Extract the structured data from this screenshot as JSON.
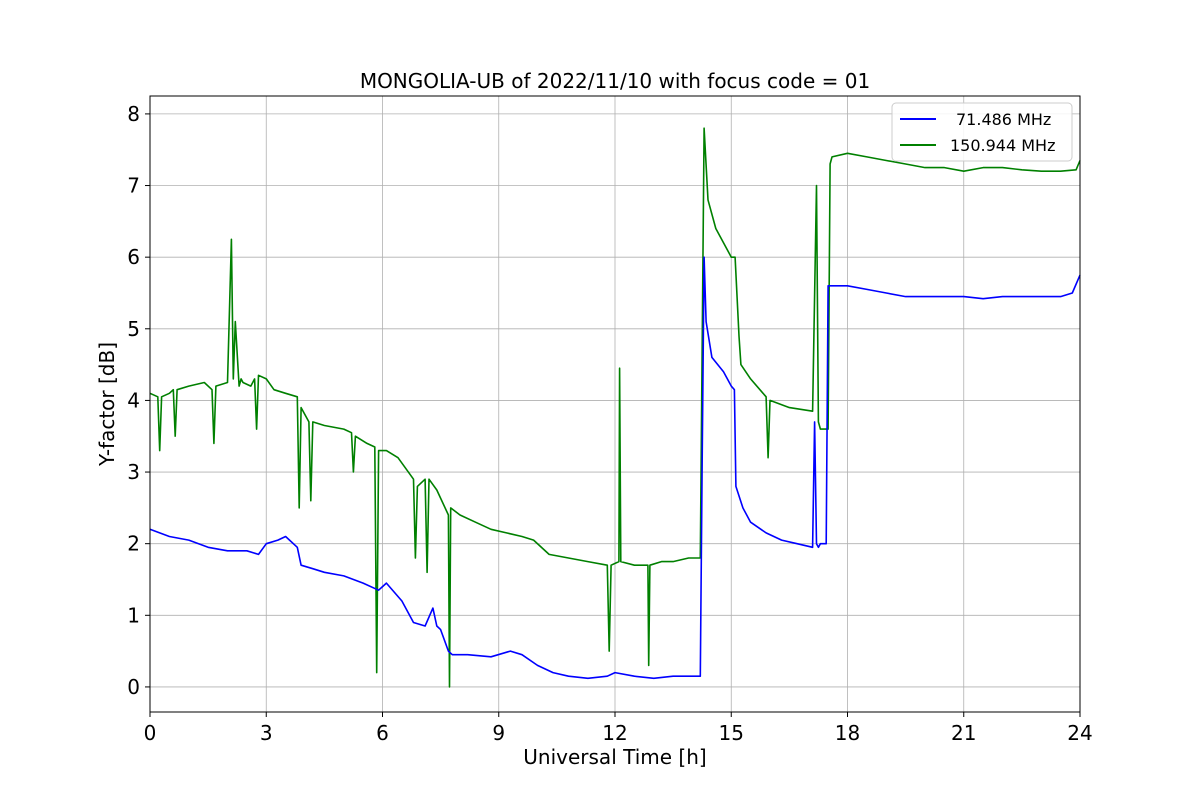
{
  "chart_data": {
    "type": "line",
    "title": "MONGOLIA-UB of 2022/11/10 with focus code = 01",
    "xlabel": "Universal Time [h]",
    "ylabel": "Y-factor [dB]",
    "xlim": [
      0,
      24
    ],
    "ylim": [
      -0.35,
      8.25
    ],
    "xticks": [
      0,
      3,
      6,
      9,
      12,
      15,
      18,
      21,
      24
    ],
    "xtick_labels": [
      "0",
      "3",
      "6",
      "9",
      "12",
      "15",
      "18",
      "21",
      "24"
    ],
    "yticks": [
      0,
      1,
      2,
      3,
      4,
      5,
      6,
      7,
      8
    ],
    "ytick_labels": [
      "0",
      "1",
      "2",
      "3",
      "4",
      "5",
      "6",
      "7",
      "8"
    ],
    "grid": true,
    "legend_position": "top-right",
    "series": [
      {
        "name": "71.486 MHz",
        "color": "#0000ff",
        "x": [
          0,
          0.5,
          1,
          1.5,
          2,
          2.5,
          2.8,
          3,
          3.3,
          3.5,
          3.8,
          3.9,
          4.2,
          4.5,
          5,
          5.5,
          5.9,
          6.1,
          6.5,
          6.8,
          7.1,
          7.3,
          7.4,
          7.5,
          7.7,
          7.8,
          8.2,
          8.8,
          9.3,
          9.6,
          10,
          10.4,
          10.8,
          11.3,
          11.8,
          12,
          12.5,
          13,
          13.5,
          14,
          14.2,
          14.25,
          14.3,
          14.35,
          14.5,
          14.8,
          15,
          15.08,
          15.12,
          15.3,
          15.5,
          15.9,
          16.3,
          16.7,
          17.1,
          17.15,
          17.2,
          17.25,
          17.3,
          17.45,
          17.5,
          17.7,
          18,
          18.5,
          19,
          19.5,
          20,
          20.5,
          21,
          21.5,
          22,
          22.5,
          23,
          23.5,
          23.8,
          24
        ],
        "y": [
          2.2,
          2.1,
          2.05,
          1.95,
          1.9,
          1.9,
          1.85,
          2.0,
          2.05,
          2.1,
          1.95,
          1.7,
          1.65,
          1.6,
          1.55,
          1.45,
          1.35,
          1.45,
          1.2,
          0.9,
          0.85,
          1.1,
          0.85,
          0.8,
          0.5,
          0.45,
          0.45,
          0.42,
          0.5,
          0.45,
          0.3,
          0.2,
          0.15,
          0.12,
          0.15,
          0.2,
          0.15,
          0.12,
          0.15,
          0.15,
          0.15,
          3.2,
          6.0,
          5.1,
          4.6,
          4.4,
          4.2,
          4.15,
          2.8,
          2.5,
          2.3,
          2.15,
          2.05,
          2.0,
          1.95,
          3.7,
          2.0,
          1.95,
          2.0,
          2.0,
          5.6,
          5.6,
          5.6,
          5.55,
          5.5,
          5.45,
          5.45,
          5.45,
          5.45,
          5.42,
          5.45,
          5.45,
          5.45,
          5.45,
          5.5,
          5.75
        ]
      },
      {
        "name": "150.944 MHz",
        "color": "#008000",
        "x": [
          0,
          0.2,
          0.25,
          0.3,
          0.5,
          0.6,
          0.65,
          0.7,
          1,
          1.4,
          1.6,
          1.65,
          1.7,
          2,
          2.1,
          2.15,
          2.2,
          2.3,
          2.35,
          2.4,
          2.6,
          2.7,
          2.75,
          2.8,
          3,
          3.2,
          3.5,
          3.8,
          3.85,
          3.9,
          4.1,
          4.15,
          4.2,
          4.5,
          5,
          5.2,
          5.25,
          5.3,
          5.6,
          5.8,
          5.85,
          5.9,
          6.1,
          6.4,
          6.8,
          6.85,
          6.9,
          7.1,
          7.15,
          7.2,
          7.4,
          7.7,
          7.73,
          7.76,
          8,
          8.4,
          8.8,
          9.2,
          9.6,
          9.9,
          10.3,
          10.8,
          11.3,
          11.8,
          11.85,
          11.9,
          12.1,
          12.12,
          12.15,
          12.5,
          12.85,
          12.87,
          12.9,
          13.2,
          13.5,
          13.9,
          14.2,
          14.3,
          14.4,
          14.6,
          15,
          15.1,
          15.2,
          15.25,
          15.5,
          15.9,
          15.95,
          16,
          16.5,
          17.1,
          17.2,
          17.25,
          17.3,
          17.5,
          17.55,
          17.6,
          18,
          18.5,
          19,
          19.5,
          20,
          20.5,
          21,
          21.5,
          22,
          22.5,
          23,
          23.5,
          23.9,
          24
        ],
        "y": [
          4.1,
          4.05,
          3.3,
          4.05,
          4.1,
          4.15,
          3.5,
          4.15,
          4.2,
          4.25,
          4.15,
          3.4,
          4.2,
          4.25,
          6.25,
          4.3,
          5.1,
          4.2,
          4.3,
          4.25,
          4.2,
          4.3,
          3.6,
          4.35,
          4.3,
          4.15,
          4.1,
          4.05,
          2.5,
          3.9,
          3.7,
          2.6,
          3.7,
          3.65,
          3.6,
          3.55,
          3.0,
          3.5,
          3.4,
          3.35,
          0.2,
          3.3,
          3.3,
          3.2,
          2.9,
          1.8,
          2.8,
          2.9,
          1.6,
          2.9,
          2.75,
          2.4,
          0.0,
          2.5,
          2.4,
          2.3,
          2.2,
          2.15,
          2.1,
          2.05,
          1.85,
          1.8,
          1.75,
          1.7,
          0.5,
          1.7,
          1.75,
          4.45,
          1.75,
          1.7,
          1.7,
          0.3,
          1.7,
          1.75,
          1.75,
          1.8,
          1.8,
          7.8,
          6.8,
          6.4,
          6.0,
          6.0,
          4.9,
          4.5,
          4.3,
          4.05,
          3.2,
          4.0,
          3.9,
          3.85,
          7.0,
          3.7,
          3.6,
          3.6,
          7.3,
          7.4,
          7.45,
          7.4,
          7.35,
          7.3,
          7.25,
          7.25,
          7.2,
          7.25,
          7.25,
          7.22,
          7.2,
          7.2,
          7.22,
          7.35
        ]
      }
    ]
  }
}
